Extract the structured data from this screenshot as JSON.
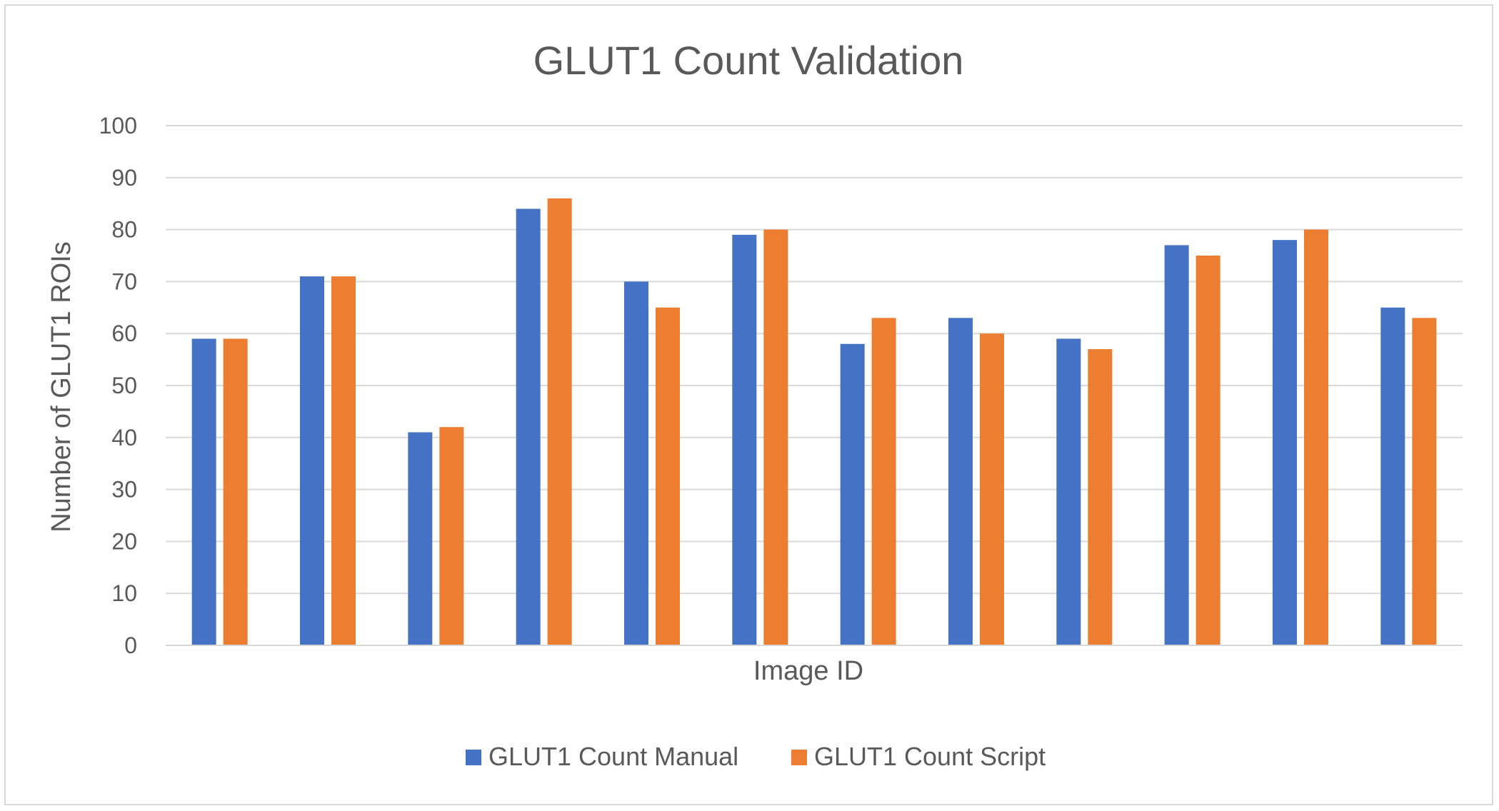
{
  "chart_data": {
    "type": "bar",
    "title": "GLUT1 Count Validation",
    "xlabel": "Image ID",
    "ylabel": "Number of GLUT1 ROIs",
    "ylim": [
      0,
      100
    ],
    "yticks": [
      "0",
      "10",
      "20",
      "30",
      "40",
      "50",
      "60",
      "70",
      "80",
      "90",
      "100"
    ],
    "categories": [
      "",
      "",
      "",
      "",
      "",
      "",
      "",
      "",
      "",
      "",
      "",
      ""
    ],
    "grid": true,
    "legend_position": "bottom",
    "series": [
      {
        "name": "GLUT1 Count Manual",
        "color": "#4472c4",
        "values": [
          59,
          71,
          41,
          84,
          70,
          79,
          58,
          63,
          59,
          77,
          78,
          65
        ]
      },
      {
        "name": "GLUT1 Count Script",
        "color": "#ed7d31",
        "values": [
          59,
          71,
          42,
          86,
          65,
          80,
          63,
          60,
          57,
          75,
          80,
          63
        ]
      }
    ]
  }
}
